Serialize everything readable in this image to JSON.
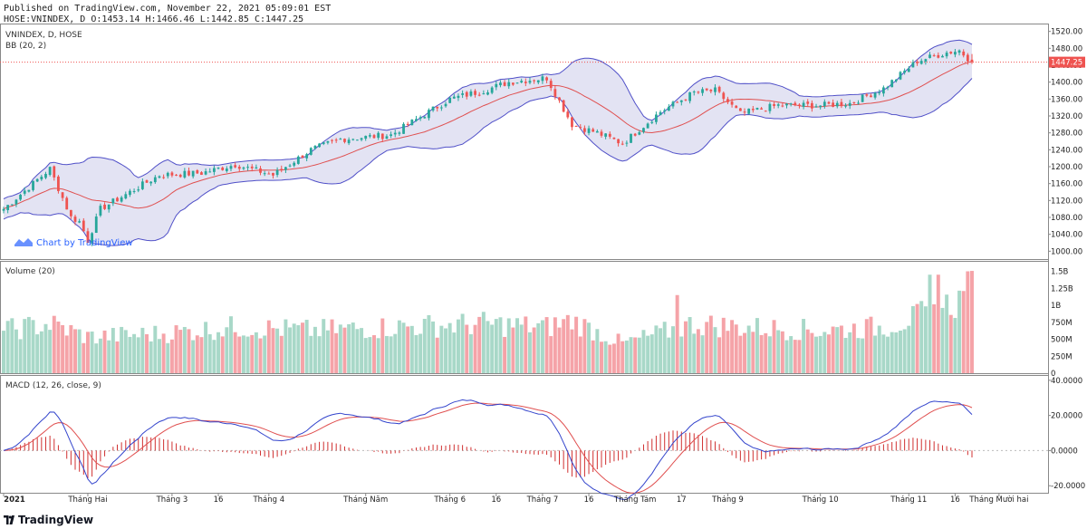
{
  "header": {
    "published": "Published on TradingView.com, November 22, 2021 05:09:01 EST",
    "ohlc_line": "HOSE:VNINDEX, D O:1453.14 H:1466.46 L:1442.85 C:1447.25"
  },
  "price_pane": {
    "symbol_label": "VNINDEX, D, HOSE",
    "bb_label": "BB (20, 2)",
    "watermark": "Chart by TradingView",
    "last_price": "1447.25",
    "y_ticks": [
      "1520.00",
      "1480.00",
      "1440.00",
      "1400.00",
      "1360.00",
      "1320.00",
      "1280.00",
      "1240.00",
      "1200.00",
      "1160.00",
      "1120.00",
      "1080.00",
      "1040.00",
      "1000.00"
    ]
  },
  "volume_pane": {
    "label": "Volume (20)",
    "y_ticks": [
      "1.5B",
      "1.25B",
      "1B",
      "750M",
      "500M",
      "250M",
      "0"
    ]
  },
  "macd_pane": {
    "label": "MACD (12, 26, close, 9)",
    "y_ticks": [
      "40.0000",
      "20.0000",
      "0.0000",
      "-20.0000"
    ]
  },
  "x_axis": {
    "labels": [
      "2021",
      "Tháng Hai",
      "Tháng 3",
      "16",
      "Tháng 4",
      "Tháng Năm",
      "Tháng 6",
      "16",
      "Tháng 7",
      "16",
      "Tháng Tám",
      "17",
      "Tháng 9",
      "Tháng 10",
      "Tháng 11",
      "16",
      "Tháng Mười hai"
    ]
  },
  "footer": {
    "brand": "TradingView"
  },
  "colors": {
    "up": "#26a69a",
    "down": "#ef5350",
    "vol_up": "#a8d8c8",
    "vol_down": "#f5a3a8",
    "bb_band": "#5050c8",
    "bb_fill": "#dcdcf0",
    "bb_basis": "#e05050",
    "macd": "#3344cc",
    "signal": "#e05050",
    "hist": "#d03030",
    "last_price_bg": "#ef5350"
  },
  "chart_data": [
    {
      "type": "candlestick",
      "title": "VNINDEX, D, HOSE",
      "ylim": [
        990,
        1530
      ],
      "x_range": [
        "2021-01-04",
        "2021-11-22"
      ],
      "ohlc_last": {
        "open": 1453.14,
        "high": 1466.46,
        "low": 1442.85,
        "close": 1447.25
      },
      "anchors": {
        "dates": [
          "2021-01-04",
          "2021-01-19",
          "2021-01-26",
          "2021-01-28",
          "2021-02-01",
          "2021-02-04",
          "2021-02-24",
          "2021-03-10",
          "2021-03-20",
          "2021-04-02",
          "2021-04-15",
          "2021-04-26",
          "2021-05-12",
          "2021-06-01",
          "2021-06-11",
          "2021-06-21",
          "2021-07-02",
          "2021-07-12",
          "2021-07-20",
          "2021-07-28",
          "2021-08-10",
          "2021-08-20",
          "2021-08-27",
          "2021-09-06",
          "2021-09-17",
          "2021-10-01",
          "2021-10-12",
          "2021-10-22",
          "2021-11-03",
          "2021-11-12",
          "2021-11-17",
          "2021-11-22"
        ],
        "close": [
          1100,
          1195,
          1080,
          1070,
          1025,
          1100,
          1180,
          1185,
          1205,
          1180,
          1240,
          1265,
          1275,
          1360,
          1380,
          1400,
          1410,
          1300,
          1280,
          1255,
          1330,
          1375,
          1380,
          1325,
          1345,
          1345,
          1350,
          1385,
          1450,
          1470,
          1475,
          1447.25
        ]
      },
      "bollinger": {
        "period": 20,
        "mult": 2
      }
    },
    {
      "type": "bar",
      "title": "Volume (20)",
      "ylim": [
        0,
        1600000000
      ],
      "anchors": {
        "dates": [
          "2021-01-04",
          "2021-01-19",
          "2021-02-01",
          "2021-02-24",
          "2021-03-20",
          "2021-04-15",
          "2021-05-12",
          "2021-06-11",
          "2021-07-02",
          "2021-07-12",
          "2021-07-28",
          "2021-08-20",
          "2021-09-06",
          "2021-10-01",
          "2021-10-22",
          "2021-11-03",
          "2021-11-17",
          "2021-11-22"
        ],
        "volume": [
          650000000,
          750000000,
          550000000,
          600000000,
          700000000,
          650000000,
          700000000,
          750000000,
          700000000,
          800000000,
          450000000,
          750000000,
          700000000,
          650000000,
          700000000,
          850000000,
          1100000000,
          1250000000
        ]
      },
      "spikes": [
        {
          "date": "2021-08-16",
          "volume": 1150000000
        },
        {
          "date": "2021-11-08",
          "volume": 1450000000
        },
        {
          "date": "2021-11-10",
          "volume": 1450000000
        },
        {
          "date": "2021-11-19",
          "volume": 1500000000
        }
      ]
    },
    {
      "type": "line",
      "title": "MACD (12, 26, close, 9)",
      "ylim": [
        -24,
        43
      ],
      "series": [
        {
          "name": "MACD"
        },
        {
          "name": "Signal"
        },
        {
          "name": "Histogram"
        }
      ]
    }
  ]
}
